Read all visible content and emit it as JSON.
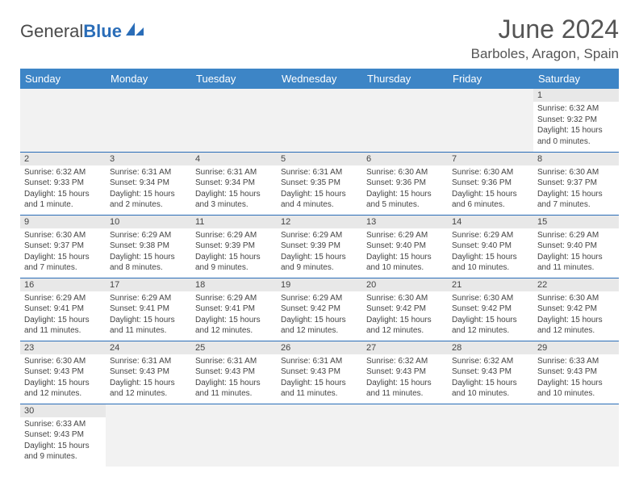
{
  "logo": {
    "text1": "General",
    "text2": "Blue"
  },
  "title": "June 2024",
  "location": "Barboles, Aragon, Spain",
  "daysOfWeek": [
    "Sunday",
    "Monday",
    "Tuesday",
    "Wednesday",
    "Thursday",
    "Friday",
    "Saturday"
  ],
  "colors": {
    "header_bg": "#3d85c6",
    "header_text": "#ffffff",
    "daynum_bg": "#e8e8e8",
    "border": "#2a6db8",
    "text": "#444444"
  },
  "grid": [
    [
      null,
      null,
      null,
      null,
      null,
      null,
      {
        "n": "1",
        "sr": "6:32 AM",
        "ss": "9:32 PM",
        "dl": "15 hours and 0 minutes."
      }
    ],
    [
      {
        "n": "2",
        "sr": "6:32 AM",
        "ss": "9:33 PM",
        "dl": "15 hours and 1 minute."
      },
      {
        "n": "3",
        "sr": "6:31 AM",
        "ss": "9:34 PM",
        "dl": "15 hours and 2 minutes."
      },
      {
        "n": "4",
        "sr": "6:31 AM",
        "ss": "9:34 PM",
        "dl": "15 hours and 3 minutes."
      },
      {
        "n": "5",
        "sr": "6:31 AM",
        "ss": "9:35 PM",
        "dl": "15 hours and 4 minutes."
      },
      {
        "n": "6",
        "sr": "6:30 AM",
        "ss": "9:36 PM",
        "dl": "15 hours and 5 minutes."
      },
      {
        "n": "7",
        "sr": "6:30 AM",
        "ss": "9:36 PM",
        "dl": "15 hours and 6 minutes."
      },
      {
        "n": "8",
        "sr": "6:30 AM",
        "ss": "9:37 PM",
        "dl": "15 hours and 7 minutes."
      }
    ],
    [
      {
        "n": "9",
        "sr": "6:30 AM",
        "ss": "9:37 PM",
        "dl": "15 hours and 7 minutes."
      },
      {
        "n": "10",
        "sr": "6:29 AM",
        "ss": "9:38 PM",
        "dl": "15 hours and 8 minutes."
      },
      {
        "n": "11",
        "sr": "6:29 AM",
        "ss": "9:39 PM",
        "dl": "15 hours and 9 minutes."
      },
      {
        "n": "12",
        "sr": "6:29 AM",
        "ss": "9:39 PM",
        "dl": "15 hours and 9 minutes."
      },
      {
        "n": "13",
        "sr": "6:29 AM",
        "ss": "9:40 PM",
        "dl": "15 hours and 10 minutes."
      },
      {
        "n": "14",
        "sr": "6:29 AM",
        "ss": "9:40 PM",
        "dl": "15 hours and 10 minutes."
      },
      {
        "n": "15",
        "sr": "6:29 AM",
        "ss": "9:40 PM",
        "dl": "15 hours and 11 minutes."
      }
    ],
    [
      {
        "n": "16",
        "sr": "6:29 AM",
        "ss": "9:41 PM",
        "dl": "15 hours and 11 minutes."
      },
      {
        "n": "17",
        "sr": "6:29 AM",
        "ss": "9:41 PM",
        "dl": "15 hours and 11 minutes."
      },
      {
        "n": "18",
        "sr": "6:29 AM",
        "ss": "9:41 PM",
        "dl": "15 hours and 12 minutes."
      },
      {
        "n": "19",
        "sr": "6:29 AM",
        "ss": "9:42 PM",
        "dl": "15 hours and 12 minutes."
      },
      {
        "n": "20",
        "sr": "6:30 AM",
        "ss": "9:42 PM",
        "dl": "15 hours and 12 minutes."
      },
      {
        "n": "21",
        "sr": "6:30 AM",
        "ss": "9:42 PM",
        "dl": "15 hours and 12 minutes."
      },
      {
        "n": "22",
        "sr": "6:30 AM",
        "ss": "9:42 PM",
        "dl": "15 hours and 12 minutes."
      }
    ],
    [
      {
        "n": "23",
        "sr": "6:30 AM",
        "ss": "9:43 PM",
        "dl": "15 hours and 12 minutes."
      },
      {
        "n": "24",
        "sr": "6:31 AM",
        "ss": "9:43 PM",
        "dl": "15 hours and 12 minutes."
      },
      {
        "n": "25",
        "sr": "6:31 AM",
        "ss": "9:43 PM",
        "dl": "15 hours and 11 minutes."
      },
      {
        "n": "26",
        "sr": "6:31 AM",
        "ss": "9:43 PM",
        "dl": "15 hours and 11 minutes."
      },
      {
        "n": "27",
        "sr": "6:32 AM",
        "ss": "9:43 PM",
        "dl": "15 hours and 11 minutes."
      },
      {
        "n": "28",
        "sr": "6:32 AM",
        "ss": "9:43 PM",
        "dl": "15 hours and 10 minutes."
      },
      {
        "n": "29",
        "sr": "6:33 AM",
        "ss": "9:43 PM",
        "dl": "15 hours and 10 minutes."
      }
    ],
    [
      {
        "n": "30",
        "sr": "6:33 AM",
        "ss": "9:43 PM",
        "dl": "15 hours and 9 minutes."
      },
      null,
      null,
      null,
      null,
      null,
      null
    ]
  ],
  "labels": {
    "sunrise": "Sunrise:",
    "sunset": "Sunset:",
    "daylight": "Daylight:"
  }
}
